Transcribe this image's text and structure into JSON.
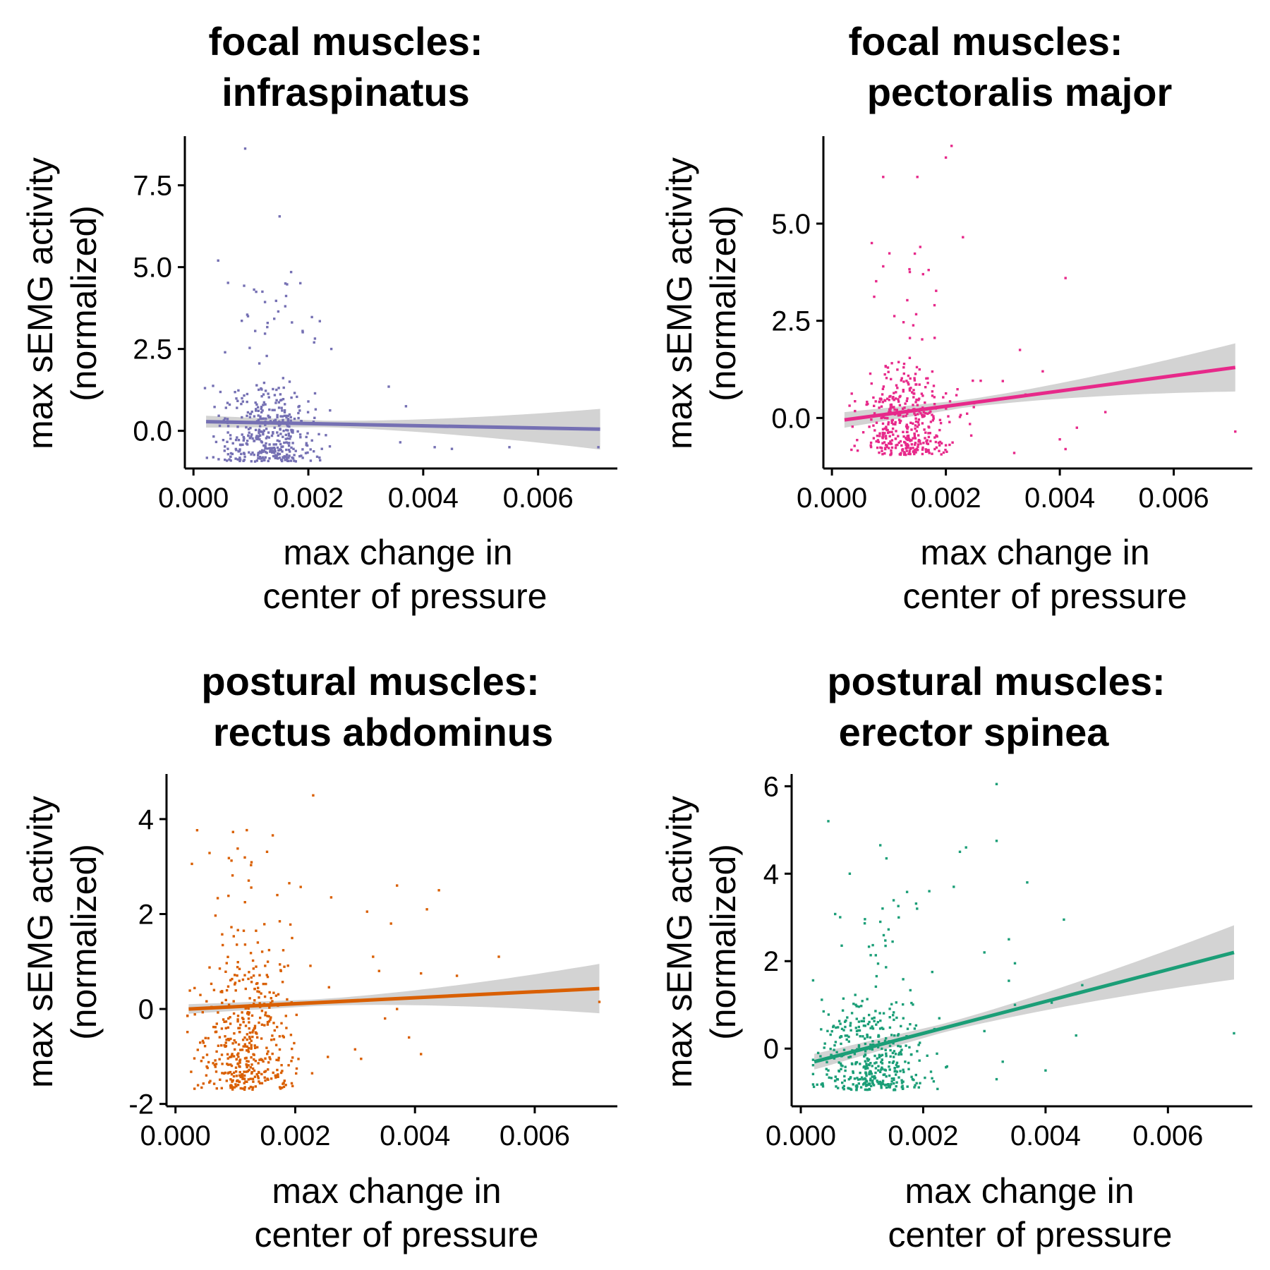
{
  "colors": {
    "band": "#d3d3d3"
  },
  "chart_data": [
    {
      "type": "scatter",
      "title_lines": [
        "focal muscles:",
        "infraspinatus"
      ],
      "xlabel_lines": [
        "max change in",
        "center of pressure"
      ],
      "ylabel_lines": [
        "max sEMG activity",
        "(normalized)"
      ],
      "xlim": [
        -0.00015,
        0.00738
      ],
      "ylim": [
        -1.15,
        9.0
      ],
      "xticks": [
        0.0,
        0.002,
        0.004,
        0.006
      ],
      "xtick_labels": [
        "0.000",
        "0.002",
        "0.004",
        "0.006"
      ],
      "yticks": [
        0.0,
        2.5,
        5.0,
        7.5
      ],
      "ytick_labels": [
        "0.0",
        "2.5",
        "5.0",
        "7.5"
      ],
      "color": "#7570b3",
      "fit": {
        "x0": 0.00022,
        "y0": 0.28,
        "x1": 0.00708,
        "y1": 0.05,
        "se0": 0.18,
        "se_mid": 0.1,
        "se1": 0.62
      },
      "cluster": {
        "n": 420,
        "x_center": 0.0013,
        "x_spread": 0.00075,
        "y_low": -0.95,
        "y_high": 1.6,
        "tail": 3.0
      },
      "outliers": [
        [
          0.0009,
          8.62
        ],
        [
          0.0015,
          6.55
        ],
        [
          0.00043,
          5.2
        ],
        [
          0.0017,
          4.85
        ],
        [
          0.0012,
          4.25
        ],
        [
          0.0016,
          4.5
        ],
        [
          0.00095,
          3.5
        ],
        [
          0.0022,
          3.35
        ],
        [
          0.0019,
          3.05
        ],
        [
          0.0021,
          2.7
        ],
        [
          0.00055,
          2.4
        ],
        [
          0.0024,
          2.5
        ],
        [
          0.0034,
          1.35
        ],
        [
          0.0037,
          0.75
        ],
        [
          0.0039,
          0.15
        ],
        [
          0.0042,
          -0.5
        ],
        [
          0.0045,
          -0.55
        ],
        [
          0.0055,
          -0.5
        ],
        [
          0.00705,
          -0.5
        ],
        [
          0.0036,
          -0.35
        ]
      ]
    },
    {
      "type": "scatter",
      "title_lines": [
        "focal muscles:",
        "pectoralis major"
      ],
      "xlabel_lines": [
        "max change in",
        "center of pressure"
      ],
      "ylabel_lines": [
        "max sEMG activity",
        "(normalized)"
      ],
      "xlim": [
        -0.00015,
        0.00738
      ],
      "ylim": [
        -1.3,
        7.25
      ],
      "xticks": [
        0.0,
        0.002,
        0.004,
        0.006
      ],
      "xtick_labels": [
        "0.000",
        "0.002",
        "0.004",
        "0.006"
      ],
      "yticks": [
        0.0,
        2.5,
        5.0
      ],
      "ytick_labels": [
        "0.0",
        "2.5",
        "5.0"
      ],
      "color": "#e7298a",
      "fit": {
        "x0": 0.00022,
        "y0": -0.05,
        "x1": 0.00708,
        "y1": 1.3,
        "se0": 0.2,
        "se_mid": 0.1,
        "se1": 0.62
      },
      "cluster": {
        "n": 420,
        "x_center": 0.0013,
        "x_spread": 0.00075,
        "y_low": -0.95,
        "y_high": 1.5,
        "tail": 2.8
      },
      "outliers": [
        [
          0.0021,
          7.0
        ],
        [
          0.002,
          6.7
        ],
        [
          0.0009,
          6.2
        ],
        [
          0.0015,
          6.2
        ],
        [
          0.0007,
          4.5
        ],
        [
          0.0023,
          4.65
        ],
        [
          0.00155,
          4.4
        ],
        [
          0.0041,
          3.6
        ],
        [
          0.0009,
          3.9
        ],
        [
          0.0016,
          3.7
        ],
        [
          0.0018,
          2.9
        ],
        [
          0.0033,
          1.75
        ],
        [
          0.0037,
          1.2
        ],
        [
          0.003,
          0.95
        ],
        [
          0.0034,
          0.6
        ],
        [
          0.0048,
          0.15
        ],
        [
          0.0043,
          -0.25
        ],
        [
          0.004,
          -0.55
        ],
        [
          0.0041,
          -0.8
        ],
        [
          0.00708,
          -0.35
        ],
        [
          0.0032,
          -0.9
        ]
      ]
    },
    {
      "type": "scatter",
      "title_lines": [
        "postural muscles:",
        "rectus abdominus"
      ],
      "xlabel_lines": [
        "max change in",
        "center of pressure"
      ],
      "ylabel_lines": [
        "max sEMG activity",
        "(normalized)"
      ],
      "xlim": [
        -0.00015,
        0.00738
      ],
      "ylim": [
        -2.05,
        4.95
      ],
      "xticks": [
        0.0,
        0.002,
        0.004,
        0.006
      ],
      "xtick_labels": [
        "0.000",
        "0.002",
        "0.004",
        "0.006"
      ],
      "yticks": [
        -2,
        0,
        2,
        4
      ],
      "ytick_labels": [
        "-2",
        "0",
        "2",
        "4"
      ],
      "color": "#d95f02",
      "fit": {
        "x0": 0.00022,
        "y0": 0.0,
        "x1": 0.00708,
        "y1": 0.43,
        "se0": 0.1,
        "se_mid": 0.07,
        "se1": 0.52
      },
      "cluster": {
        "n": 460,
        "x_center": 0.0012,
        "x_spread": 0.00075,
        "y_low": -1.7,
        "y_high": 1.8,
        "tail": 2.0
      },
      "outliers": [
        [
          0.0023,
          4.5
        ],
        [
          0.0019,
          2.65
        ],
        [
          0.0037,
          2.6
        ],
        [
          0.0044,
          2.5
        ],
        [
          0.0042,
          2.1
        ],
        [
          0.0026,
          2.35
        ],
        [
          0.0017,
          2.4
        ],
        [
          0.0032,
          2.05
        ],
        [
          0.0036,
          1.8
        ],
        [
          0.0033,
          1.1
        ],
        [
          0.0034,
          0.8
        ],
        [
          0.0054,
          1.1
        ],
        [
          0.0047,
          0.7
        ],
        [
          0.0041,
          0.75
        ],
        [
          0.0037,
          0.0
        ],
        [
          0.0035,
          -0.2
        ],
        [
          0.0039,
          -0.6
        ],
        [
          0.0041,
          -0.95
        ],
        [
          0.0031,
          -1.05
        ],
        [
          0.00708,
          0.15
        ],
        [
          0.003,
          -0.85
        ]
      ]
    },
    {
      "type": "scatter",
      "title_lines": [
        "postural muscles:",
        "erector spinea"
      ],
      "xlabel_lines": [
        "max change in",
        "center of pressure"
      ],
      "ylabel_lines": [
        "max sEMG activity",
        "(normalized)"
      ],
      "xlim": [
        -0.00015,
        0.00738
      ],
      "ylim": [
        -1.32,
        6.28
      ],
      "xticks": [
        0.0,
        0.002,
        0.004,
        0.006
      ],
      "xtick_labels": [
        "0.000",
        "0.002",
        "0.004",
        "0.006"
      ],
      "yticks": [
        0,
        2,
        4,
        6
      ],
      "ytick_labels": [
        "0",
        "2",
        "4",
        "6"
      ],
      "color": "#1b9e77",
      "fit": {
        "x0": 0.00022,
        "y0": -0.3,
        "x1": 0.00708,
        "y1": 2.2,
        "se0": 0.18,
        "se_mid": 0.1,
        "se1": 0.62
      },
      "cluster": {
        "n": 440,
        "x_center": 0.0012,
        "x_spread": 0.00075,
        "y_low": -0.95,
        "y_high": 1.4,
        "tail": 2.2
      },
      "outliers": [
        [
          0.0032,
          6.05
        ],
        [
          0.00045,
          5.2
        ],
        [
          0.0013,
          4.65
        ],
        [
          0.0032,
          4.75
        ],
        [
          0.0027,
          4.6
        ],
        [
          0.0026,
          4.5
        ],
        [
          0.0014,
          4.35
        ],
        [
          0.0008,
          4.0
        ],
        [
          0.0037,
          3.8
        ],
        [
          0.0025,
          3.7
        ],
        [
          0.0021,
          3.6
        ],
        [
          0.0019,
          3.2
        ],
        [
          0.0016,
          3.0
        ],
        [
          0.0043,
          2.95
        ],
        [
          0.0013,
          2.9
        ],
        [
          0.003,
          2.2
        ],
        [
          0.0035,
          1.95
        ],
        [
          0.0034,
          1.55
        ],
        [
          0.0034,
          2.5
        ],
        [
          0.0046,
          1.45
        ],
        [
          0.0041,
          1.05
        ],
        [
          0.0035,
          1.0
        ],
        [
          0.003,
          0.4
        ],
        [
          0.0033,
          -0.3
        ],
        [
          0.004,
          -0.5
        ],
        [
          0.0045,
          0.3
        ],
        [
          0.00708,
          0.35
        ],
        [
          0.0032,
          -0.7
        ]
      ]
    }
  ]
}
